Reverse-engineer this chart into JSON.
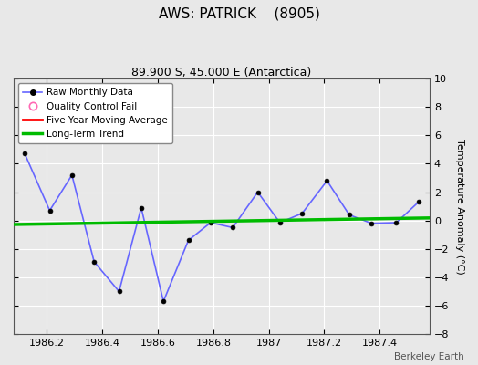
{
  "title": "AWS: PATRICK    (8905)",
  "subtitle": "89.900 S, 45.000 E (Antarctica)",
  "watermark": "Berkeley Earth",
  "ylabel": "Temperature Anomaly (°C)",
  "xlim": [
    1986.08,
    1987.58
  ],
  "ylim": [
    -8,
    10
  ],
  "yticks": [
    -8,
    -6,
    -4,
    -2,
    0,
    2,
    4,
    6,
    8,
    10
  ],
  "xticks": [
    1986.2,
    1986.4,
    1986.6,
    1986.8,
    1987.0,
    1987.2,
    1987.4
  ],
  "raw_x": [
    1986.12,
    1986.21,
    1986.29,
    1986.37,
    1986.46,
    1986.54,
    1986.62,
    1986.71,
    1986.79,
    1986.87,
    1986.96,
    1987.04,
    1987.12,
    1987.21,
    1987.29,
    1987.37,
    1987.46,
    1987.54
  ],
  "raw_y": [
    4.7,
    0.7,
    3.2,
    -2.9,
    -5.0,
    0.9,
    -5.7,
    -1.4,
    -0.15,
    -0.5,
    2.0,
    -0.15,
    0.5,
    2.8,
    0.4,
    -0.2,
    -0.15,
    1.3
  ],
  "raw_line_color": "#6666ff",
  "raw_marker_color": "#000000",
  "raw_linewidth": 1.2,
  "raw_markersize": 3.5,
  "trend_x": [
    1986.08,
    1987.58
  ],
  "trend_y": [
    -0.28,
    0.18
  ],
  "trend_color": "#00bb00",
  "trend_linewidth": 2.5,
  "moving_avg_color": "#ff0000",
  "moving_avg_linewidth": 2.0,
  "legend_entries": [
    "Raw Monthly Data",
    "Quality Control Fail",
    "Five Year Moving Average",
    "Long-Term Trend"
  ],
  "legend_line_color": "#6666ff",
  "legend_qc_color": "#ff69b4",
  "legend_ma_color": "#ff0000",
  "legend_trend_color": "#00bb00",
  "background_color": "#e8e8e8",
  "grid_color": "#d0d0d0",
  "title_fontsize": 11,
  "subtitle_fontsize": 9,
  "tick_label_fontsize": 8,
  "ylabel_fontsize": 8
}
